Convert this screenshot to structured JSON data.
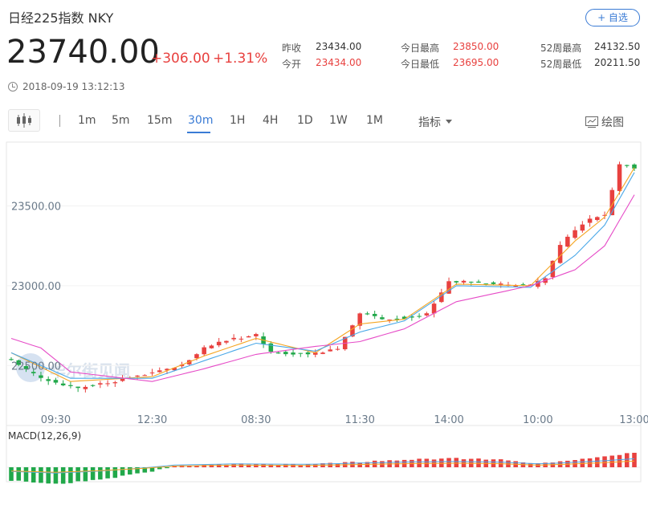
{
  "header": {
    "title": "日经225指数 NKY",
    "add_button": "+ 自选",
    "price": "23740.00",
    "change": "+306.00",
    "change_pct": "+1.31%",
    "timestamp": "2018-09-19 13:12:13"
  },
  "stats": [
    {
      "label": "昨收",
      "value": "23434.00",
      "color": "normal"
    },
    {
      "label": "今开",
      "value": "23434.00",
      "color": "red"
    },
    {
      "label": "今日最高",
      "value": "23850.00",
      "color": "red"
    },
    {
      "label": "今日最低",
      "value": "23695.00",
      "color": "red"
    },
    {
      "label": "52周最高",
      "value": "24132.50",
      "color": "normal"
    },
    {
      "label": "52周最低",
      "value": "20211.50",
      "color": "normal"
    }
  ],
  "toolbar": {
    "chart_type_icon": "candlestick-icon",
    "timeframes": [
      "1m",
      "5m",
      "15m",
      "30m",
      "1H",
      "4H",
      "1D",
      "1W",
      "1M"
    ],
    "active_timeframe": "30m",
    "indicator_label": "指标",
    "draw_label": "绘图"
  },
  "macd_label": "MACD(12,26,9)",
  "watermark": "华尔街见闻",
  "colors": {
    "up": "#e8413f",
    "down": "#21a84a",
    "accent": "#3a7bd5",
    "ma_short": "#f5a623",
    "ma_mid": "#4aa8e8",
    "ma_long": "#e64bc7",
    "dif": "#4aa8e8",
    "dea": "#f5a623"
  },
  "chart_data": {
    "type": "candlestick",
    "ylim": [
      22250,
      23900
    ],
    "y_ticks": [
      22500,
      23000,
      23500
    ],
    "y_tick_labels": [
      "22500.00",
      "23000.00",
      "23500.00"
    ],
    "x_tick_labels": [
      "09:30",
      "12:30",
      "08:30",
      "11:30",
      "14:00",
      "10:00",
      "13:00"
    ],
    "x_tick_bar_index": [
      6,
      19,
      33,
      47,
      59,
      71,
      84
    ],
    "bar_count": 85,
    "anchors": [
      [
        0,
        22540
      ],
      [
        2,
        22470
      ],
      [
        5,
        22400
      ],
      [
        9,
        22360
      ],
      [
        13,
        22390
      ],
      [
        17,
        22440
      ],
      [
        19,
        22450
      ],
      [
        23,
        22500
      ],
      [
        26,
        22610
      ],
      [
        29,
        22660
      ],
      [
        33,
        22690
      ],
      [
        35,
        22580
      ],
      [
        38,
        22570
      ],
      [
        41,
        22580
      ],
      [
        44,
        22600
      ],
      [
        47,
        22830
      ],
      [
        50,
        22790
      ],
      [
        53,
        22800
      ],
      [
        56,
        22820
      ],
      [
        59,
        23030
      ],
      [
        62,
        23020
      ],
      [
        65,
        23010
      ],
      [
        68,
        23000
      ],
      [
        70,
        23000
      ],
      [
        72,
        23050
      ],
      [
        74,
        23250
      ],
      [
        76,
        23350
      ],
      [
        78,
        23420
      ],
      [
        80,
        23440
      ],
      [
        82,
        23760
      ],
      [
        84,
        23740
      ]
    ],
    "ma_short_anchors": [
      [
        0,
        22580
      ],
      [
        8,
        22400
      ],
      [
        19,
        22430
      ],
      [
        26,
        22560
      ],
      [
        33,
        22670
      ],
      [
        41,
        22580
      ],
      [
        47,
        22760
      ],
      [
        53,
        22790
      ],
      [
        60,
        23010
      ],
      [
        70,
        23000
      ],
      [
        76,
        23280
      ],
      [
        80,
        23430
      ],
      [
        84,
        23740
      ]
    ],
    "ma_mid_anchors": [
      [
        0,
        22580
      ],
      [
        8,
        22420
      ],
      [
        19,
        22420
      ],
      [
        26,
        22530
      ],
      [
        33,
        22640
      ],
      [
        41,
        22590
      ],
      [
        47,
        22710
      ],
      [
        53,
        22780
      ],
      [
        60,
        23000
      ],
      [
        70,
        22990
      ],
      [
        76,
        23190
      ],
      [
        80,
        23380
      ],
      [
        84,
        23710
      ]
    ],
    "ma_long_anchors": [
      [
        0,
        22670
      ],
      [
        4,
        22610
      ],
      [
        8,
        22460
      ],
      [
        19,
        22400
      ],
      [
        26,
        22480
      ],
      [
        33,
        22570
      ],
      [
        41,
        22620
      ],
      [
        47,
        22650
      ],
      [
        53,
        22730
      ],
      [
        60,
        22900
      ],
      [
        70,
        23000
      ],
      [
        76,
        23100
      ],
      [
        80,
        23250
      ],
      [
        84,
        23570
      ]
    ],
    "macd_anchors": [
      [
        0,
        -30
      ],
      [
        6,
        -38
      ],
      [
        12,
        -28
      ],
      [
        18,
        -12
      ],
      [
        22,
        2
      ],
      [
        30,
        8
      ],
      [
        40,
        6
      ],
      [
        47,
        12
      ],
      [
        54,
        18
      ],
      [
        60,
        20
      ],
      [
        66,
        17
      ],
      [
        71,
        8
      ],
      [
        75,
        14
      ],
      [
        80,
        24
      ],
      [
        84,
        34
      ]
    ]
  }
}
